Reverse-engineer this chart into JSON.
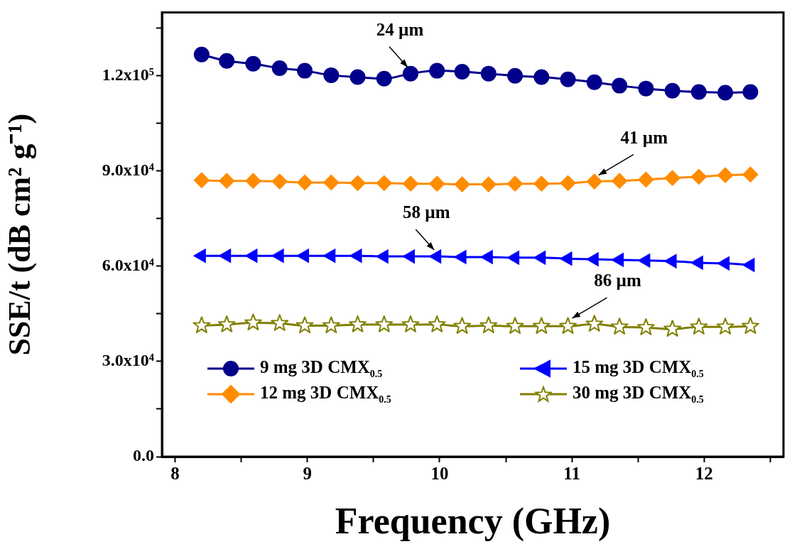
{
  "chart_data": {
    "type": "line",
    "xlabel": "Frequency (GHz)",
    "ylabel": "SSE/t (dB cm² g⁻¹)",
    "x": [
      8.2,
      8.39,
      8.59,
      8.79,
      8.98,
      9.18,
      9.38,
      9.58,
      9.78,
      9.98,
      10.17,
      10.37,
      10.57,
      10.77,
      10.97,
      11.17,
      11.36,
      11.56,
      11.76,
      11.96,
      12.16,
      12.35
    ],
    "xlim": [
      7.9,
      12.6
    ],
    "xticks": [
      8,
      {
        "value": 8.5,
        "label": null
      },
      9,
      {
        "value": 9.5,
        "label": null
      },
      10,
      {
        "value": 10.5,
        "label": null
      },
      11,
      {
        "value": 11.5,
        "label": null
      },
      12,
      {
        "value": 12.5,
        "label": null
      }
    ],
    "ylim": [
      0,
      140000
    ],
    "yticks": [
      {
        "value": 0,
        "label": "0.0"
      },
      {
        "value": 15000,
        "label": null
      },
      {
        "value": 30000,
        "label": "3.0x10⁴"
      },
      {
        "value": 45000,
        "label": null
      },
      {
        "value": 60000,
        "label": "6.0x10⁴"
      },
      {
        "value": 75000,
        "label": null
      },
      {
        "value": 90000,
        "label": "9.0x10⁴"
      },
      {
        "value": 105000,
        "label": null
      },
      {
        "value": 120000,
        "label": "1.2x10⁵"
      },
      {
        "value": 135000,
        "label": null
      }
    ],
    "grid": false,
    "legend": "bottom",
    "line_style": "solid",
    "series": [
      {
        "name": "9 mg 3D CMX$_{0.5}$",
        "color": "#00008b",
        "marker": "circle",
        "values": [
          126700,
          124700,
          123800,
          122400,
          121600,
          120200,
          119600,
          119100,
          120700,
          121600,
          121300,
          120700,
          120000,
          119600,
          118900,
          118000,
          116900,
          116000,
          115300,
          114900,
          114700,
          114900
        ]
      },
      {
        "name": "15 mg 3D CMX$_{0.5}$",
        "color": "#0000ff",
        "marker": "triangle",
        "values": [
          63300,
          63300,
          63300,
          63300,
          63300,
          63300,
          63300,
          63100,
          63100,
          63100,
          62900,
          62900,
          62700,
          62700,
          62400,
          62200,
          62000,
          61800,
          61600,
          61100,
          60900,
          60400
        ]
      },
      {
        "name": "12 mg 3D CMX$_{0.5}$",
        "color": "#ff8c00",
        "marker": "diamond",
        "values": [
          87100,
          86900,
          86900,
          86700,
          86400,
          86400,
          86200,
          86200,
          86000,
          86000,
          85800,
          85800,
          86000,
          86000,
          86200,
          86700,
          86900,
          87300,
          87800,
          88200,
          88700,
          88900
        ]
      },
      {
        "name": "30 mg 3D CMX$_{0.5}$",
        "color": "#808000",
        "marker": "star",
        "values": [
          41300,
          41600,
          42200,
          42000,
          41300,
          41300,
          41600,
          41600,
          41600,
          41600,
          41100,
          41300,
          41100,
          41100,
          41100,
          41800,
          40900,
          40700,
          40200,
          40900,
          40900,
          41100
        ]
      }
    ],
    "annotations": [
      {
        "text": "24 µm",
        "x": 9.78,
        "y": 120700
      },
      {
        "text": "41 µm",
        "x": 11.17,
        "y": 86700
      },
      {
        "text": "58 µm",
        "x": 9.98,
        "y": 63100
      },
      {
        "text": "86 µm",
        "x": 10.97,
        "y": 41600
      }
    ]
  }
}
